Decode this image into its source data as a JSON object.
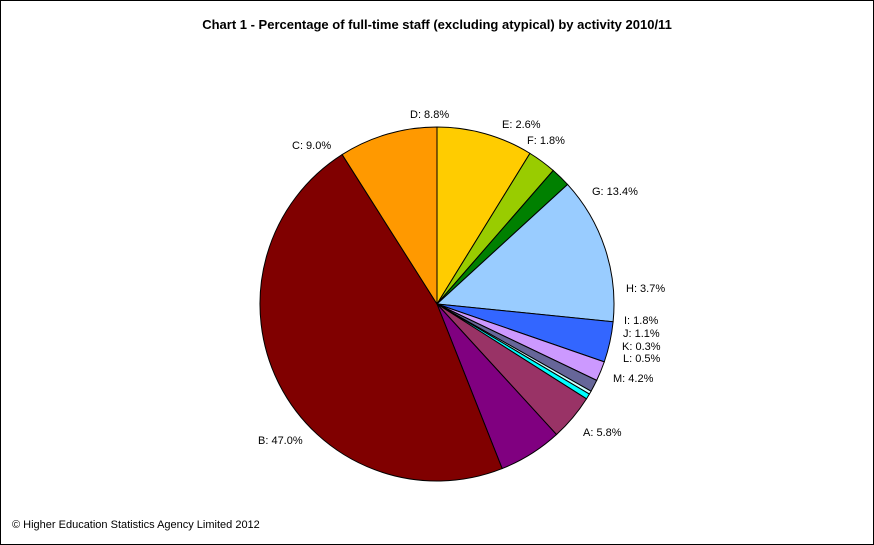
{
  "footer": "© Higher Education Statistics Agency Limited 2012",
  "chart_data": {
    "type": "pie",
    "title": "Chart 1 - Percentage of full-time staff  (excluding atypical) by  activity 2010/11",
    "start_angle_deg": -90,
    "direction": "clockwise",
    "slices": [
      {
        "key": "D",
        "label": "D: 8.8%",
        "value": 8.8,
        "color": "#FFCC00"
      },
      {
        "key": "E",
        "label": "E: 2.6%",
        "value": 2.6,
        "color": "#99CC00"
      },
      {
        "key": "F",
        "label": "F: 1.8%",
        "value": 1.8,
        "color": "#008000"
      },
      {
        "key": "G",
        "label": "G: 13.4%",
        "value": 13.4,
        "color": "#99CCFF"
      },
      {
        "key": "H",
        "label": "H: 3.7%",
        "value": 3.7,
        "color": "#3366FF"
      },
      {
        "key": "I",
        "label": "I: 1.8%",
        "value": 1.8,
        "color": "#CC99FF"
      },
      {
        "key": "J",
        "label": "J: 1.1%",
        "value": 1.1,
        "color": "#666699"
      },
      {
        "key": "K",
        "label": "K: 0.3%",
        "value": 0.3,
        "color": "#CCFFFF"
      },
      {
        "key": "L",
        "label": "L: 0.5%",
        "value": 0.5,
        "color": "#00FFFF"
      },
      {
        "key": "M",
        "label": "M: 4.2%",
        "value": 4.2,
        "color": "#993366"
      },
      {
        "key": "A",
        "label": "A: 5.8%",
        "value": 5.8,
        "color": "#800080"
      },
      {
        "key": "B",
        "label": "B: 47.0%",
        "value": 47.0,
        "color": "#800000"
      },
      {
        "key": "C",
        "label": "C: 9.0%",
        "value": 9.0,
        "color": "#FF9900"
      }
    ]
  }
}
